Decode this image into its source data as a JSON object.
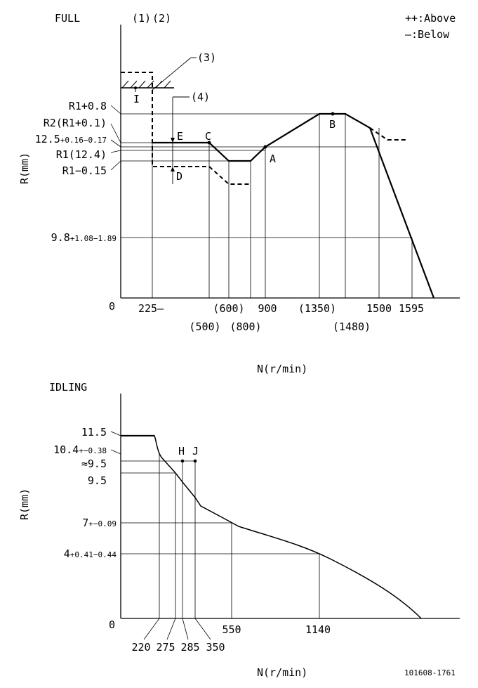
{
  "legend": {
    "above": "++:Above",
    "below": "—:Below"
  },
  "full": {
    "title": "FULL",
    "notes": [
      "(1)",
      "(2)",
      "(3)",
      "(4)"
    ],
    "y_axis_label": "R(mm)",
    "x_axis_label": "N(r/min)",
    "origin": "0",
    "y_labels": {
      "r1_plus": {
        "main": "R1+0.8",
        "sub": ""
      },
      "r2": {
        "main": "R2(R1+0.1)",
        "sub": ""
      },
      "v125": {
        "main": "12.5",
        "sub": "+0.16−0.17"
      },
      "r1": {
        "main": "R1(12.4)",
        "sub": ""
      },
      "r1_minus": {
        "main": "R1−0.15",
        "sub": ""
      },
      "v98": {
        "main": "9.8",
        "sub": "+1.08−1.89"
      }
    },
    "x_labels": {
      "n225": "225—",
      "n500": "(500)",
      "n600": "(600)",
      "n800": "(800)",
      "n900": "900",
      "n1350": "(1350)",
      "n1480": "(1480)",
      "n1500": "1500",
      "n1595": "1595"
    },
    "points": {
      "A": "A",
      "B": "B",
      "C": "C",
      "D": "D",
      "E": "E",
      "I": "I"
    }
  },
  "idling": {
    "title": "IDLING",
    "y_axis_label": "R(mm)",
    "x_axis_label": "N(r/min)",
    "origin": "0",
    "y_labels": {
      "v115": {
        "main": "11.5",
        "sub": ""
      },
      "v104": {
        "main": "10.4",
        "sub": "+−0.38"
      },
      "approx95": {
        "main": "≈9.5",
        "sub": ""
      },
      "v95": {
        "main": "9.5",
        "sub": ""
      },
      "v7": {
        "main": "7",
        "sub": "+−0.09"
      },
      "v4": {
        "main": "4",
        "sub": "+0.41−0.44"
      }
    },
    "x_labels": {
      "n220": "220",
      "n275": "275",
      "n285": "285",
      "n350": "350",
      "n550": "550",
      "n1140": "1140"
    },
    "points": {
      "H": "H",
      "J": "J"
    }
  },
  "code": "101608-1761"
}
